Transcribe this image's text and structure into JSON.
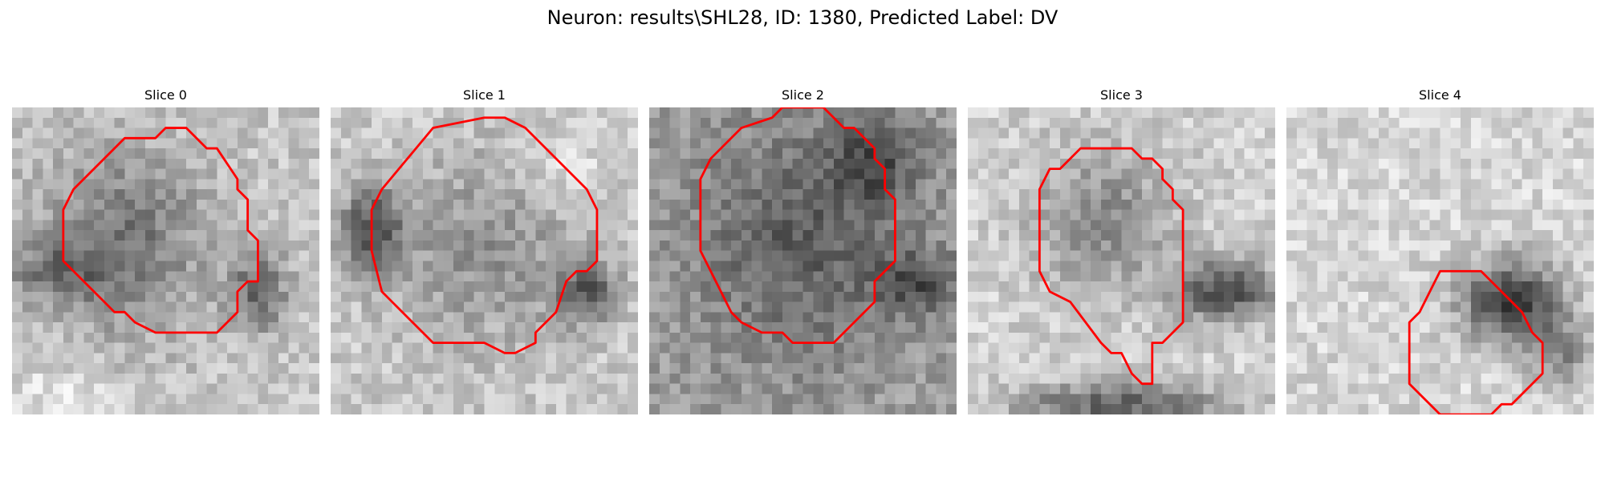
{
  "figure": {
    "title": "Neuron: results\\SHL28, ID: 1380, Predicted Label: DV"
  },
  "colors": {
    "contour": "#ff0000",
    "background": "#ffffff"
  },
  "panels": [
    {
      "title": "Slice 0"
    },
    {
      "title": "Slice 1"
    },
    {
      "title": "Slice 2"
    },
    {
      "title": "Slice 3"
    },
    {
      "title": "Slice 4"
    }
  ]
}
